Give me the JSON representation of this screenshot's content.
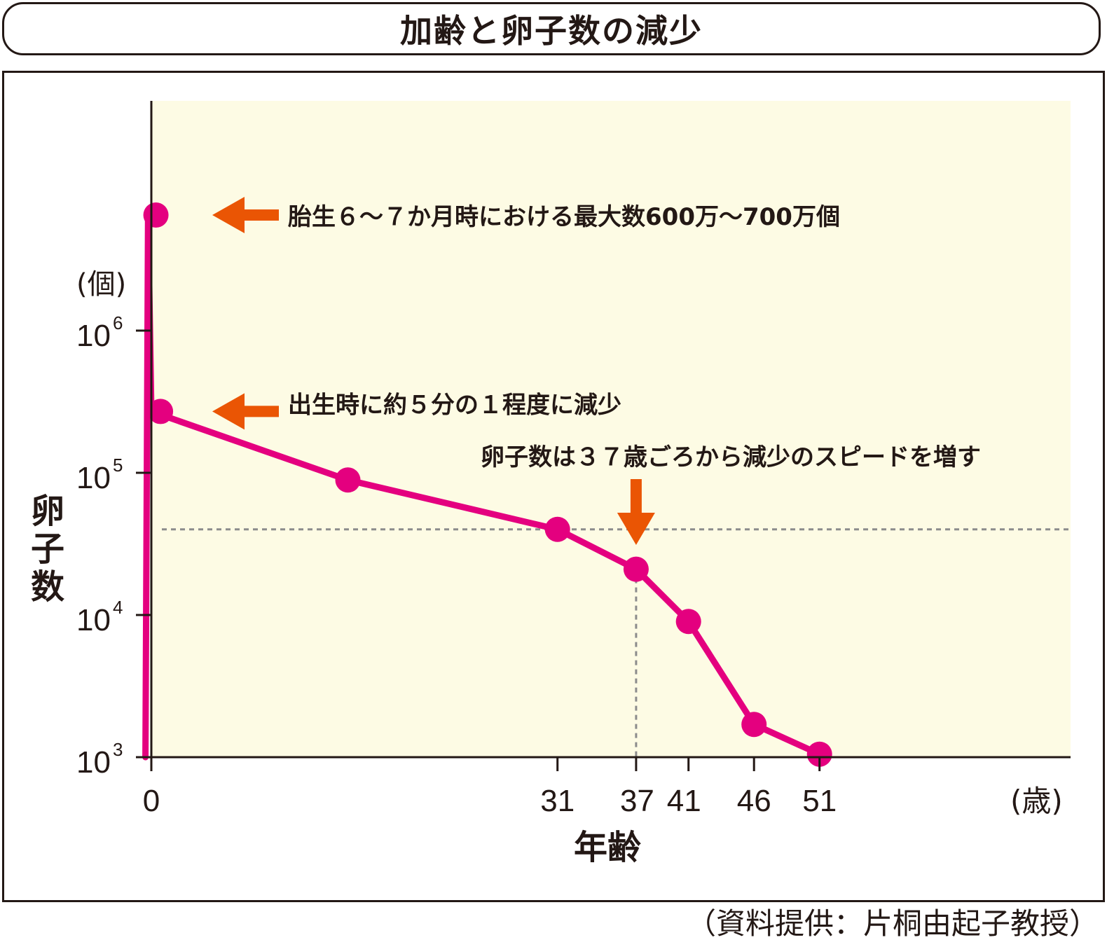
{
  "title": "加齢と卵子数の減少",
  "source": "（資料提供：片桐由起子教授）",
  "chart_data": {
    "type": "line",
    "xlabel": "年齢",
    "x_unit": "(歳)",
    "ylabel": "卵子数",
    "y_unit": "(個)",
    "y_scale": "log",
    "ylim": [
      1000,
      7000000
    ],
    "y_ticks": [
      {
        "value": 1000,
        "base": "10",
        "exp": "3"
      },
      {
        "value": 10000,
        "base": "10",
        "exp": "4"
      },
      {
        "value": 100000,
        "base": "10",
        "exp": "5"
      },
      {
        "value": 1000000,
        "base": "10",
        "exp": "6"
      }
    ],
    "x_ticks": [
      "0",
      "31",
      "37",
      "41",
      "46",
      "51"
    ],
    "x_tick_values": [
      0,
      31,
      37,
      41,
      46,
      51
    ],
    "x_tick_text": "0 31 3741 46 51",
    "points": [
      {
        "x": -0.45,
        "y": 1000
      },
      {
        "x": -0.25,
        "y": 6500000
      },
      {
        "x": 0,
        "y": 270000
      },
      {
        "x": 15,
        "y": 89000
      },
      {
        "x": 31,
        "y": 40000
      },
      {
        "x": 37,
        "y": 21000
      },
      {
        "x": 41,
        "y": 9000
      },
      {
        "x": 46,
        "y": 1700
      },
      {
        "x": 51,
        "y": 1050
      }
    ],
    "reference_level": 40000,
    "reference_age": 37,
    "annotations": [
      "胎生６〜７か月時における最大数600万〜700万個",
      "出生時に約５分の１程度に減少",
      "卵子数は３７歳ごろから減少のスピードを増す"
    ],
    "colors": {
      "line": "#E4007F",
      "arrow": "#EA5504",
      "plot_bg": "#FDFBE4",
      "axis": "#231815",
      "reference": "#8C8C8C"
    },
    "grid": false
  }
}
